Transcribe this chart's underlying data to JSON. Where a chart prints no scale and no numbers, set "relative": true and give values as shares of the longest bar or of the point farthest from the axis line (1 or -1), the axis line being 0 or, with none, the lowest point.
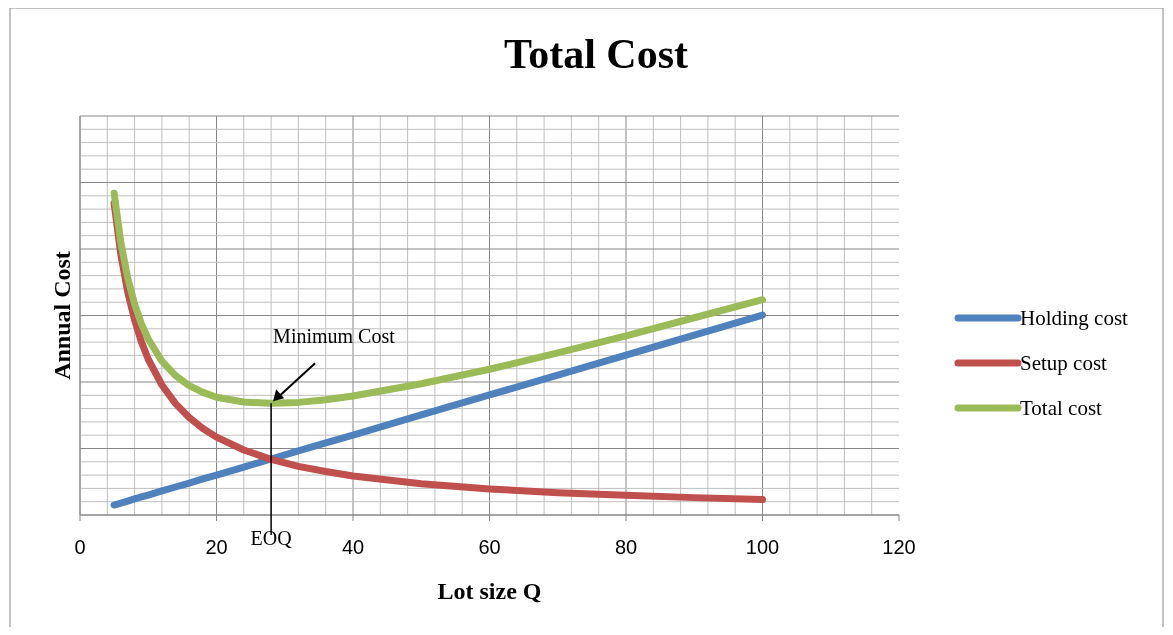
{
  "chart_data": {
    "type": "line",
    "title": "Total Cost",
    "xlabel": "Lot size Q",
    "ylabel": "Annual Cost",
    "relative": true,
    "x": [
      5,
      6,
      7,
      8,
      9,
      10,
      12,
      14,
      16,
      18,
      20,
      24,
      28,
      32,
      36,
      40,
      50,
      60,
      70,
      80,
      90,
      100
    ],
    "xlim": [
      0,
      120
    ],
    "xticks": [
      0,
      20,
      40,
      60,
      80,
      100,
      120
    ],
    "series": [
      {
        "name": "Holding cost",
        "color": "#4f81bd",
        "values": [
          0.031,
          0.037,
          0.043,
          0.05,
          0.056,
          0.062,
          0.075,
          0.087,
          0.099,
          0.112,
          0.124,
          0.149,
          0.174,
          0.199,
          0.224,
          0.248,
          0.311,
          0.373,
          0.435,
          0.497,
          0.559,
          0.621
        ]
      },
      {
        "name": "Setup cost",
        "color": "#c0504d",
        "values": [
          0.969,
          0.807,
          0.692,
          0.606,
          0.538,
          0.484,
          0.404,
          0.346,
          0.303,
          0.269,
          0.242,
          0.202,
          0.173,
          0.151,
          0.135,
          0.121,
          0.097,
          0.081,
          0.069,
          0.061,
          0.054,
          0.048
        ]
      },
      {
        "name": "Total cost",
        "color": "#9bbb59",
        "values": [
          1,
          0.845,
          0.736,
          0.655,
          0.594,
          0.547,
          0.478,
          0.433,
          0.402,
          0.381,
          0.366,
          0.351,
          0.347,
          0.35,
          0.358,
          0.37,
          0.408,
          0.453,
          0.504,
          0.557,
          0.613,
          0.669
        ]
      }
    ],
    "annotations": [
      {
        "text": "Minimum Cost",
        "x": 28,
        "y": 0.347
      }
    ],
    "ref_lines": [
      {
        "axis": "x",
        "value": 28,
        "label": "EOQ",
        "color": "#000000"
      }
    ],
    "grid": true,
    "legend": "right",
    "marker": "none",
    "line_style": "solid"
  }
}
